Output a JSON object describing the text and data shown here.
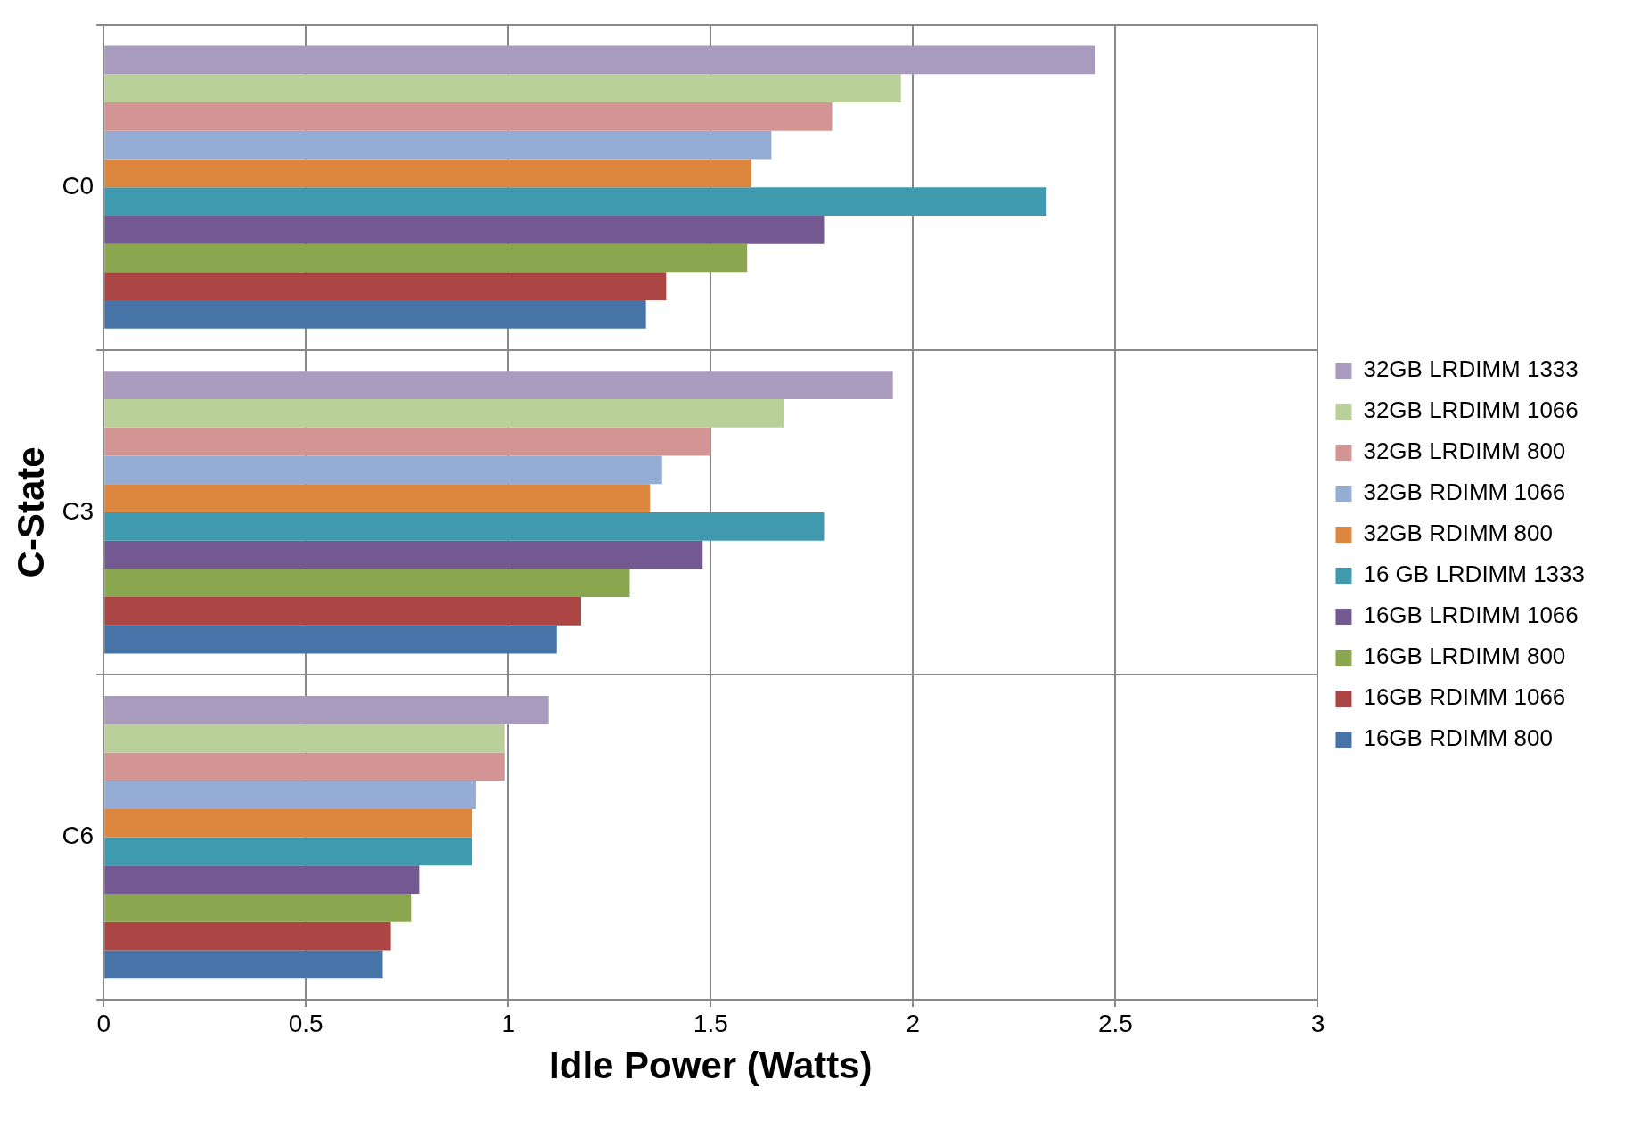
{
  "chart_data": {
    "type": "bar",
    "orientation": "horizontal",
    "xlabel": "Idle Power (Watts)",
    "ylabel": "C-State",
    "categories": [
      "C0",
      "C3",
      "C6"
    ],
    "series": [
      {
        "name": "32GB LRDIMM 1333",
        "color": "#a99bbd",
        "values": [
          2.45,
          1.95,
          1.1
        ]
      },
      {
        "name": "32GB LRDIMM 1066",
        "color": "#b9d198",
        "values": [
          1.97,
          1.68,
          0.99
        ]
      },
      {
        "name": "32GB LRDIMM 800",
        "color": "#d39594",
        "values": [
          1.8,
          1.5,
          0.99
        ]
      },
      {
        "name": "32GB RDIMM 1066",
        "color": "#95acd4",
        "values": [
          1.65,
          1.38,
          0.92
        ]
      },
      {
        "name": "32GB RDIMM 800",
        "color": "#dd873e",
        "values": [
          1.6,
          1.35,
          0.91
        ]
      },
      {
        "name": "16 GB LRDIMM 1333",
        "color": "#3f9ab0",
        "values": [
          2.33,
          1.78,
          0.91
        ]
      },
      {
        "name": "16GB LRDIMM 1066",
        "color": "#735891",
        "values": [
          1.78,
          1.48,
          0.78
        ]
      },
      {
        "name": "16GB LRDIMM 800",
        "color": "#8aa74f",
        "values": [
          1.59,
          1.3,
          0.76
        ]
      },
      {
        "name": "16GB RDIMM 1066",
        "color": "#ac4645",
        "values": [
          1.39,
          1.18,
          0.71
        ]
      },
      {
        "name": "16GB RDIMM 800",
        "color": "#4674a9",
        "values": [
          1.34,
          1.12,
          0.69
        ]
      }
    ],
    "xlim": [
      0,
      3
    ],
    "xticks": [
      0,
      0.5,
      1,
      1.5,
      2,
      2.5,
      3
    ],
    "grid": true,
    "legend": "right"
  }
}
